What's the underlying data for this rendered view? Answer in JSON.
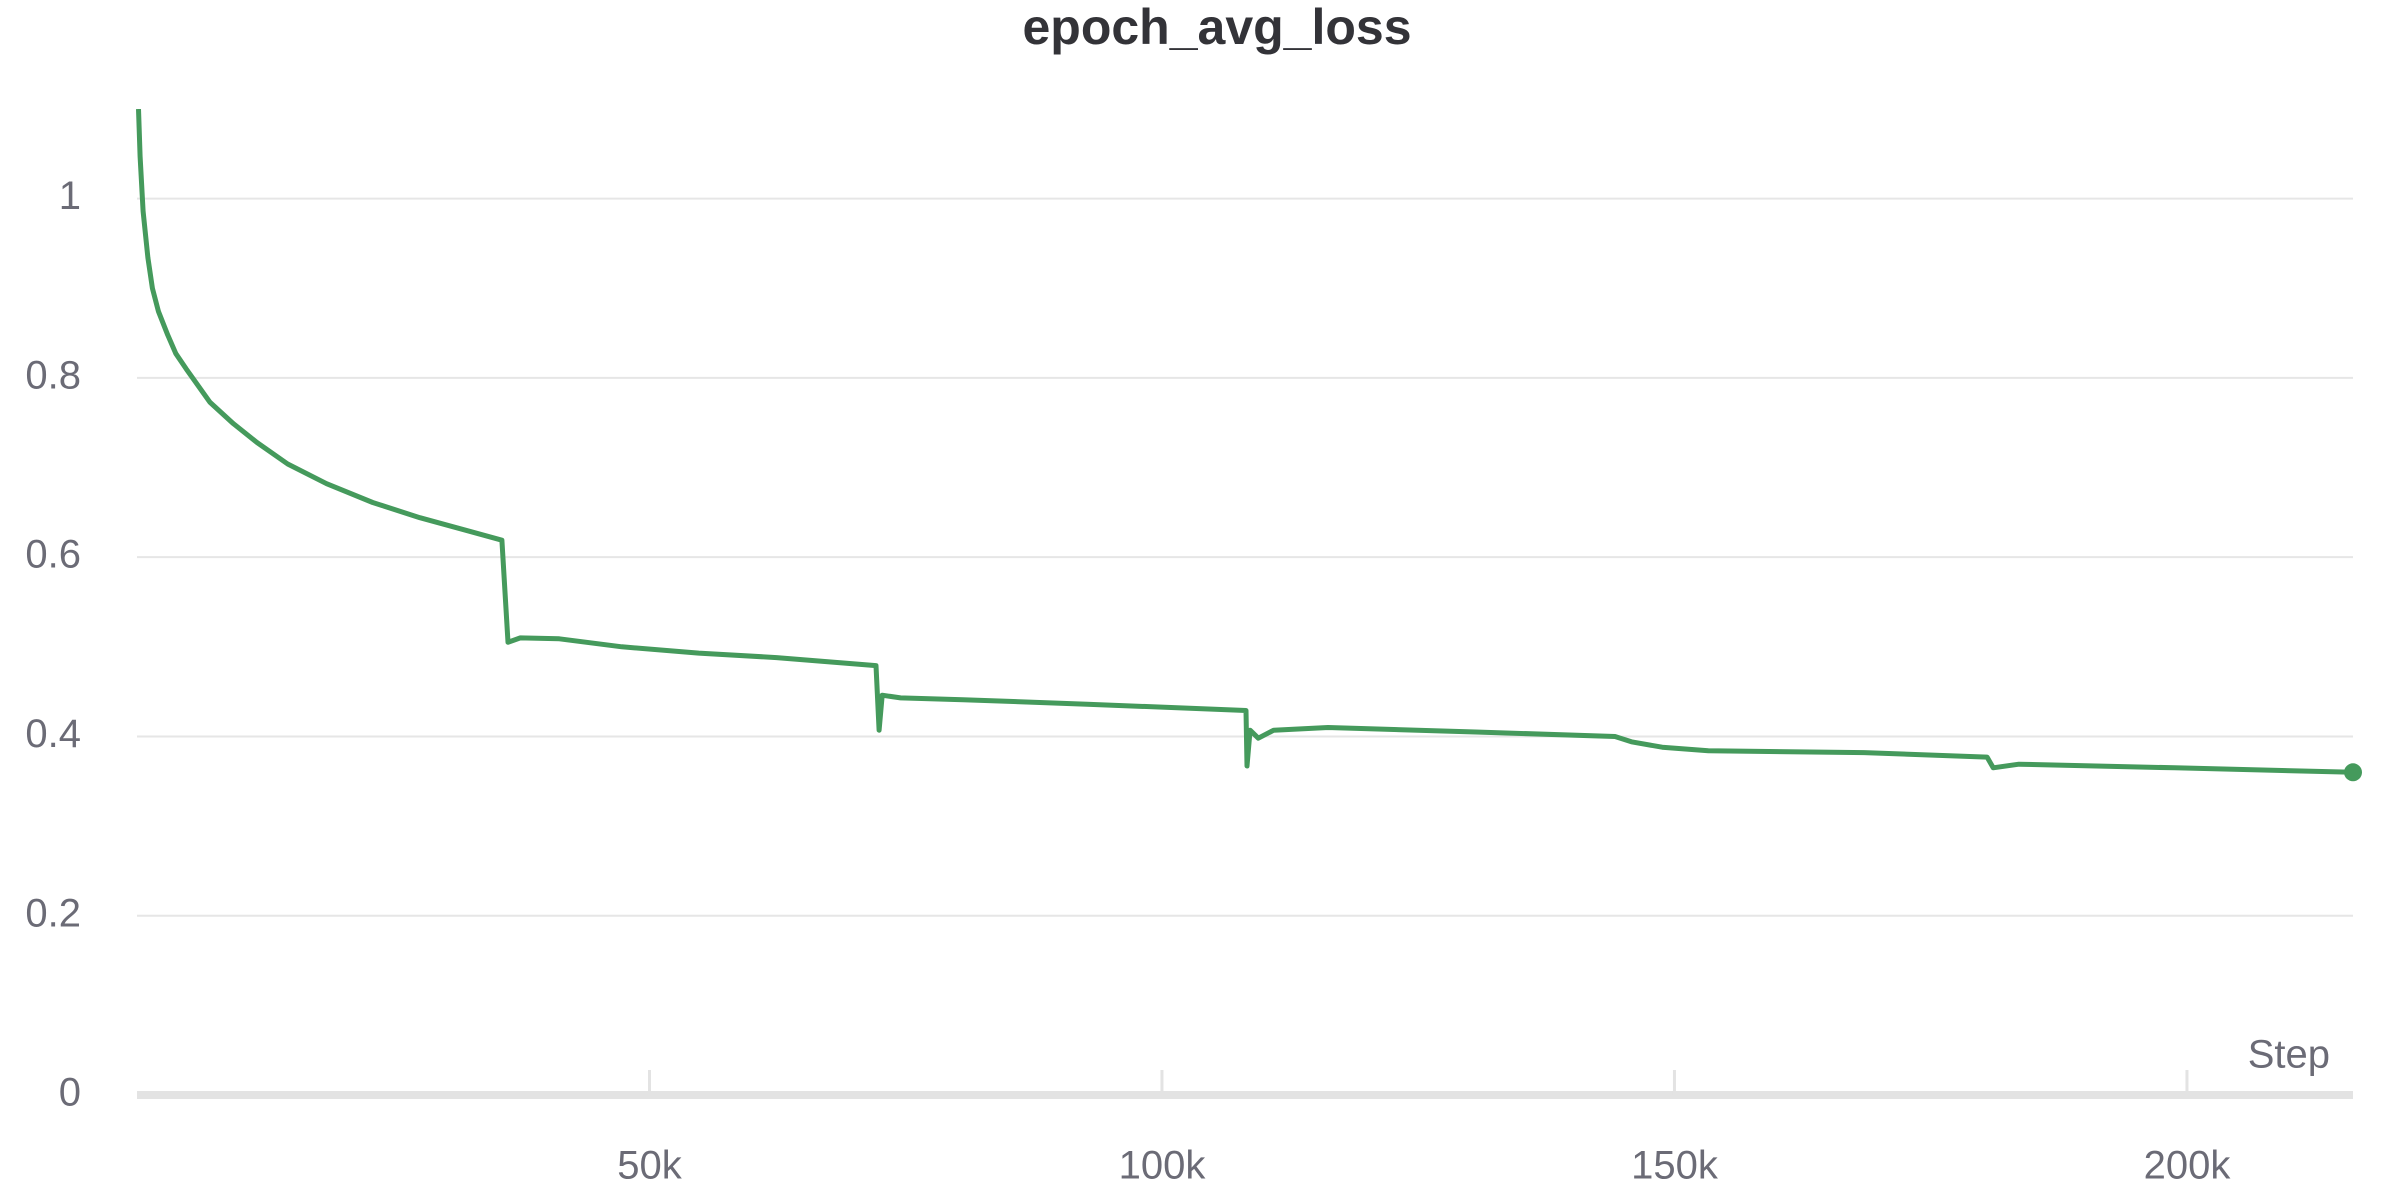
{
  "chart_data": {
    "type": "line",
    "title": "epoch_avg_loss",
    "xlabel": "Step",
    "x": [
      150,
      300,
      600,
      1060,
      1500,
      2100,
      3000,
      3800,
      4800,
      7100,
      9400,
      11700,
      14700,
      18500,
      23000,
      27600,
      32100,
      35600,
      36200,
      37400,
      41200,
      47300,
      54800,
      62400,
      72100,
      72400,
      72700,
      74500,
      80600,
      92700,
      108200,
      108300,
      108600,
      109400,
      110900,
      116200,
      130600,
      144200,
      145800,
      148800,
      153300,
      168500,
      180500,
      181100,
      183600,
      198800,
      216200
    ],
    "series": [
      {
        "name": "epoch_avg_loss",
        "color": "#459a5c",
        "values": [
          1.1,
          1.047,
          0.986,
          0.934,
          0.9,
          0.874,
          0.848,
          0.827,
          0.81,
          0.773,
          0.749,
          0.728,
          0.704,
          0.682,
          0.661,
          0.644,
          0.63,
          0.619,
          0.505,
          0.51,
          0.509,
          0.5,
          0.493,
          0.488,
          0.479,
          0.407,
          0.446,
          0.443,
          0.441,
          0.436,
          0.429,
          0.367,
          0.407,
          0.398,
          0.407,
          0.41,
          0.405,
          0.4,
          0.394,
          0.388,
          0.384,
          0.382,
          0.377,
          0.365,
          0.369,
          0.365,
          0.36
        ]
      }
    ],
    "xlim": [
      0,
      216200
    ],
    "ylim": [
      0,
      1.1
    ],
    "xticks": [
      {
        "value": 50000,
        "label": "50k"
      },
      {
        "value": 100000,
        "label": "100k"
      },
      {
        "value": 150000,
        "label": "150k"
      },
      {
        "value": 200000,
        "label": "200k"
      }
    ],
    "yticks": [
      0,
      0.2,
      0.4,
      0.6,
      0.8,
      1
    ],
    "grid": true,
    "last_point_marker": true
  }
}
